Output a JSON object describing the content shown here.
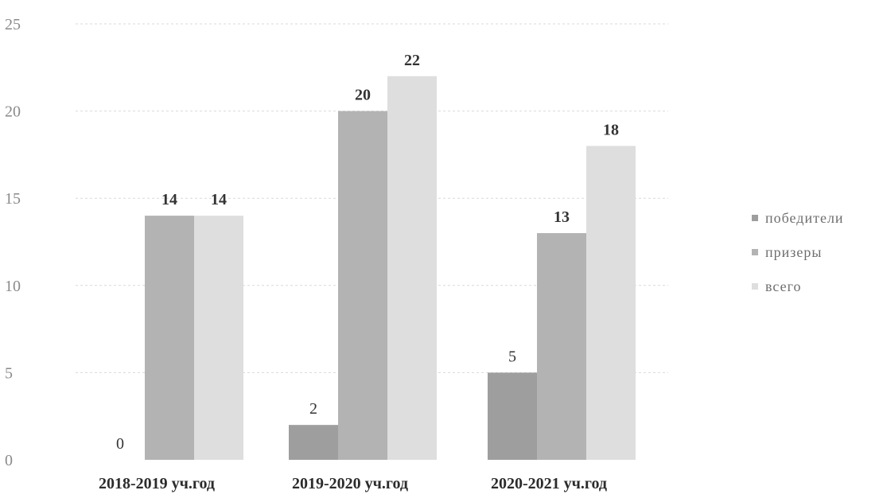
{
  "chart_data": {
    "type": "bar",
    "categories": [
      "2018-2019 уч.год",
      "2019-2020 уч.год",
      "2020-2021 уч.год"
    ],
    "series": [
      {
        "name": "победители",
        "values": [
          0,
          2,
          5
        ],
        "color": "#9e9e9e"
      },
      {
        "name": "призеры",
        "values": [
          14,
          20,
          13
        ],
        "color": "#b3b3b3"
      },
      {
        "name": "всего",
        "values": [
          14,
          22,
          18
        ],
        "color": "#dedede"
      }
    ],
    "data_labels": [
      [
        "0",
        "2",
        "5"
      ],
      [
        "14",
        "20",
        "13"
      ],
      [
        "14",
        "22",
        "18"
      ]
    ],
    "ylim": [
      0,
      25
    ],
    "yticks": [
      0,
      5,
      10,
      15,
      20,
      25
    ],
    "grid": true,
    "legend_position": "right"
  }
}
